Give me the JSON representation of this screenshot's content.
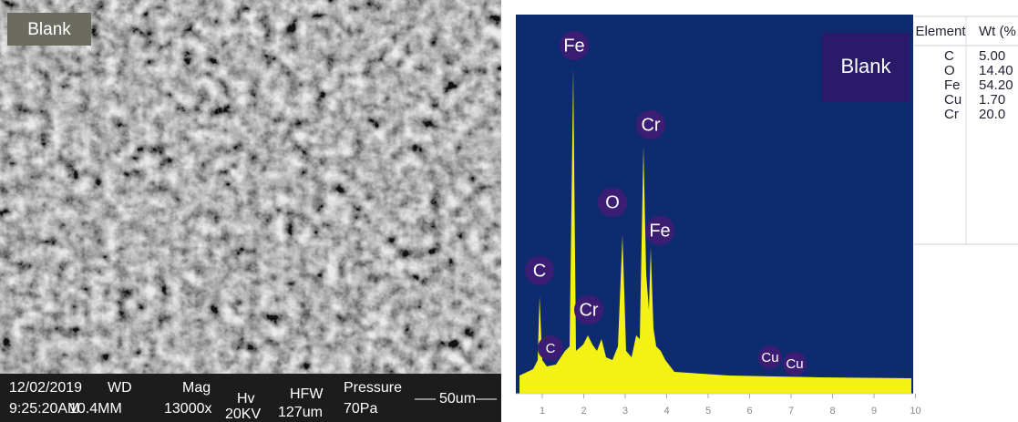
{
  "sem": {
    "label": "Blank",
    "date": "12/02/2019",
    "time": "9:25:20AM",
    "wd_label": "WD",
    "wd": "10.4MM",
    "mag_label": "Mag",
    "mag": "13000x",
    "hv_label": "Hv",
    "hv": "20KV",
    "hfw_label": "HFW",
    "hfw": "127um",
    "pressure_label": "Pressure",
    "pressure": "70Pa",
    "scale": "50um"
  },
  "spectrum": {
    "label": "Blank",
    "peaks": [
      "Fe",
      "Cr",
      "O",
      "Fe",
      "C",
      "Cr",
      "C",
      "Cu",
      "Cu"
    ],
    "x_ticks": [
      "1",
      "2",
      "3",
      "4",
      "5",
      "6",
      "7",
      "8",
      "9",
      "10"
    ]
  },
  "table": {
    "header": [
      "Element",
      "Wt (%"
    ],
    "rows": [
      [
        "C",
        "5.00"
      ],
      [
        "O",
        "14.40"
      ],
      [
        "Fe",
        "54.20"
      ],
      [
        "Cu",
        "1.70"
      ],
      [
        "Cr",
        "20.0"
      ]
    ]
  }
}
